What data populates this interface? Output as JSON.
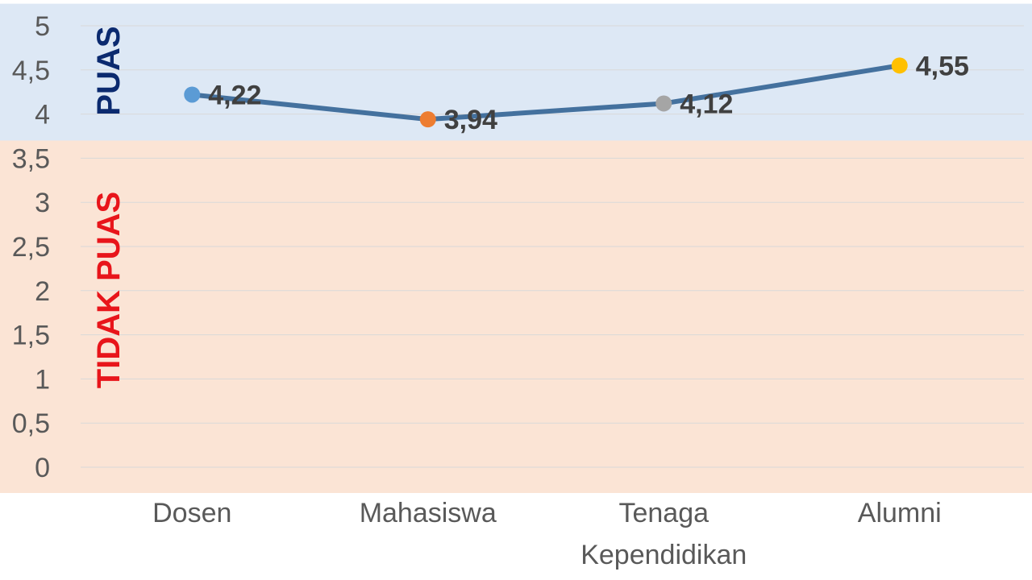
{
  "chart_data": {
    "type": "line",
    "categories": [
      "Dosen",
      "Mahasiswa",
      "Tenaga Kependidikan",
      "Alumni"
    ],
    "category_lines": [
      [
        "Dosen"
      ],
      [
        "Mahasiswa"
      ],
      [
        "Tenaga",
        "Kependidikan"
      ],
      [
        "Alumni"
      ]
    ],
    "values": [
      4.22,
      3.94,
      4.12,
      4.55
    ],
    "data_labels": [
      "4,22",
      "3,94",
      "4,12",
      "4,55"
    ],
    "point_colors": [
      "#5b9bd5",
      "#ed7d31",
      "#a5a5a5",
      "#ffc000"
    ],
    "line_color": "#44719e",
    "ylim": [
      0,
      5
    ],
    "y_ticks": [
      "0",
      "0,5",
      "1",
      "1,5",
      "2",
      "2,5",
      "3",
      "3,5",
      "4",
      "4,5",
      "5"
    ],
    "grid": true,
    "zones": [
      {
        "label": "PUAS",
        "from": 3.7,
        "to": 5.25,
        "fill": "#dde8f5",
        "text_color": "#0b2a6f"
      },
      {
        "label": "TIDAK PUAS",
        "from": -0.3,
        "to": 3.7,
        "fill": "#fbe4d5",
        "text_color": "#e8151b"
      }
    ]
  }
}
